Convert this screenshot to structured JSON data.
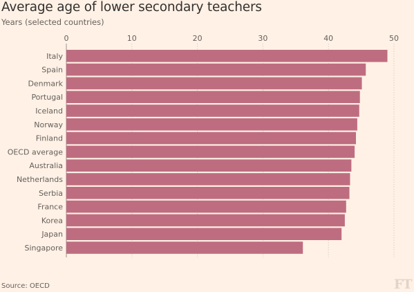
{
  "title": "Average age of lower secondary teachers",
  "subtitle": "Years (selected countries)",
  "source": "Source: OECD",
  "logo_text": "FT",
  "colors": {
    "bar": "#be6d81",
    "background": "#fff1e5",
    "grid": "#d8cfc7",
    "text": "#66605c"
  },
  "chart_data": {
    "type": "bar",
    "orientation": "horizontal",
    "title": "Average age of lower secondary teachers",
    "subtitle": "Years (selected countries)",
    "categories": [
      "Italy",
      "Spain",
      "Denmark",
      "Portugal",
      "Iceland",
      "Norway",
      "Finland",
      "OECD average",
      "Australia",
      "Netherlands",
      "Serbia",
      "France",
      "Korea",
      "Japan",
      "Singapore"
    ],
    "values": [
      49.0,
      45.7,
      45.1,
      44.8,
      44.7,
      44.4,
      44.2,
      44.0,
      43.5,
      43.3,
      43.2,
      42.7,
      42.5,
      42.0,
      36.1
    ],
    "xlim": [
      0,
      50
    ],
    "xticks": [
      0,
      10,
      20,
      30,
      40,
      50
    ],
    "axis_position": "top",
    "grid": true
  }
}
